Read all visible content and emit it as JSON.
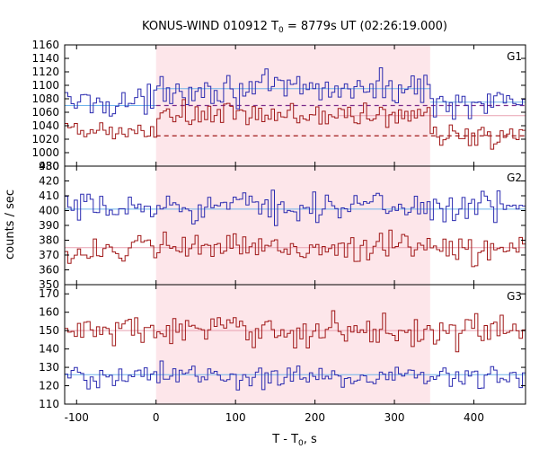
{
  "chart_data": {
    "type": "line",
    "title": {
      "prefix": "KONUS-WIND 010912 T",
      "subscript": "0",
      "suffix": " = 8779s UT (02:26:19.000)"
    },
    "xlabel": {
      "prefix": "T - T",
      "subscript": "0",
      "suffix": ", s"
    },
    "ylabel": "counts / sec",
    "xlim": [
      -115,
      465
    ],
    "xticks": [
      -100,
      0,
      100,
      200,
      300,
      400
    ],
    "xtick_labels": [
      "-100",
      "0",
      "100",
      "200",
      "300",
      "400"
    ],
    "shaded_interval": [
      0,
      345
    ],
    "colors": {
      "shade": "#fde6ea",
      "blue_series": "#2b2bb0",
      "red_series": "#a01818",
      "blue_level": "#6fb4ea",
      "red_level": "#e8a0b0"
    },
    "bin_width_s": 4,
    "panels": [
      {
        "label": "G1",
        "ylim": [
          980,
          1160
        ],
        "yticks": [
          980,
          1000,
          1020,
          1040,
          1060,
          1080,
          1100,
          1120,
          1140,
          1160
        ],
        "ytick_labels": [
          "980",
          "1000",
          "1020",
          "1040",
          "1060",
          "1080",
          "1100",
          "1120",
          "1140",
          "1160"
        ],
        "series": [
          {
            "color": "blue",
            "base_before": 1075,
            "base_during": 1095,
            "base_after": 1075,
            "amplitude": 16,
            "level_lines": [
              {
                "x": [
                  -115,
                  0
                ],
                "y": 1070,
                "style": "solid"
              },
              {
                "x": [
                  0,
                  345
                ],
                "y": 1095,
                "style": "solid"
              },
              {
                "x": [
                  345,
                  465
                ],
                "y": 1075,
                "style": "solid"
              }
            ]
          },
          {
            "color": "red",
            "base_before": 1030,
            "base_during": 1055,
            "base_after": 1025,
            "amplitude": 14,
            "level_lines": [
              {
                "x": [
                  0,
                  465
                ],
                "y": 1025,
                "style": "dashed"
              },
              {
                "x": [
                  0,
                  465
                ],
                "y": 1070,
                "style": "dashed",
                "color": "purple"
              },
              {
                "x": [
                  230,
                  465
                ],
                "y": 1055,
                "style": "solid"
              }
            ]
          }
        ]
      },
      {
        "label": "G2",
        "ylim": [
          350,
          430
        ],
        "yticks": [
          350,
          360,
          370,
          380,
          390,
          400,
          410,
          420,
          430
        ],
        "ytick_labels": [
          "350",
          "360",
          "370",
          "380",
          "390",
          "400",
          "410",
          "420",
          "430"
        ],
        "series": [
          {
            "color": "blue",
            "base_before": 401,
            "base_during": 403,
            "base_after": 402,
            "amplitude": 7,
            "level_lines": [
              {
                "x": [
                  -115,
                  465
                ],
                "y": 401,
                "style": "solid"
              }
            ]
          },
          {
            "color": "red",
            "base_before": 373,
            "base_during": 375,
            "base_after": 374,
            "amplitude": 7,
            "level_lines": [
              {
                "x": [
                  -115,
                  465
                ],
                "y": 375,
                "style": "solid"
              }
            ]
          }
        ]
      },
      {
        "label": "G3",
        "ylim": [
          110,
          175
        ],
        "yticks": [
          110,
          120,
          130,
          140,
          150,
          160,
          170
        ],
        "ytick_labels": [
          "110",
          "120",
          "130",
          "140",
          "150",
          "160",
          "170"
        ],
        "series": [
          {
            "color": "red",
            "base_before": 150,
            "base_during": 150,
            "base_after": 150,
            "amplitude": 6,
            "level_lines": [
              {
                "x": [
                  -115,
                  465
                ],
                "y": 150,
                "style": "solid"
              }
            ]
          },
          {
            "color": "blue",
            "base_before": 125,
            "base_during": 125,
            "base_after": 125,
            "amplitude": 5,
            "level_lines": [
              {
                "x": [
                  -115,
                  465
                ],
                "y": 126,
                "style": "solid"
              }
            ]
          }
        ]
      }
    ]
  }
}
